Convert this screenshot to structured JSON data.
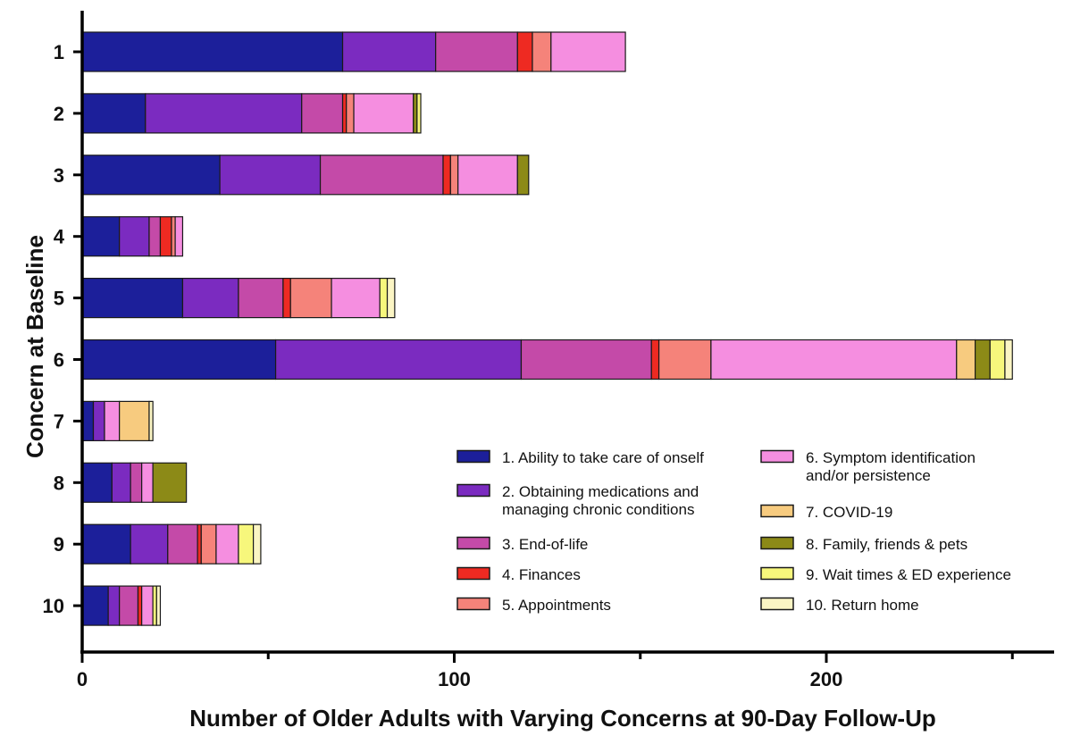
{
  "chart_data": {
    "type": "bar",
    "orientation": "horizontal",
    "stacked": true,
    "title": "",
    "xlabel": "Number of Older Adults with Varying Concerns at 90-Day Follow-Up",
    "ylabel": "Concern at Baseline",
    "xlim": [
      0,
      260
    ],
    "xticks": [
      0,
      100,
      200
    ],
    "categories": [
      "1",
      "2",
      "3",
      "4",
      "5",
      "6",
      "7",
      "8",
      "9",
      "10"
    ],
    "series": [
      {
        "name": "1. Ability to take care of onself",
        "color": "#1c1f9a",
        "values": [
          70,
          17,
          37,
          10,
          27,
          52,
          3,
          8,
          13,
          7
        ]
      },
      {
        "name": "2. Obtaining medications and managing chronic conditions",
        "color": "#7b2bc0",
        "values": [
          25,
          42,
          27,
          8,
          15,
          66,
          3,
          5,
          10,
          3
        ]
      },
      {
        "name": "3. End-of-life",
        "color": "#c44aa8",
        "values": [
          22,
          11,
          33,
          3,
          12,
          35,
          0,
          3,
          8,
          5
        ]
      },
      {
        "name": "4. Finances",
        "color": "#ee2a22",
        "values": [
          4,
          1,
          2,
          3,
          2,
          2,
          0,
          0,
          1,
          1
        ]
      },
      {
        "name": "5. Appointments",
        "color": "#f5837a",
        "values": [
          5,
          2,
          2,
          1,
          11,
          14,
          0,
          0,
          4,
          0
        ]
      },
      {
        "name": "6. Symptom identification and/or persistence",
        "color": "#f58ee0",
        "values": [
          20,
          16,
          16,
          2,
          13,
          66,
          4,
          3,
          6,
          3
        ]
      },
      {
        "name": "7. COVID-19",
        "color": "#f7cb7f",
        "values": [
          0,
          0,
          0,
          0,
          0,
          5,
          8,
          0,
          0,
          0
        ]
      },
      {
        "name": "8. Family, friends & pets",
        "color": "#8c8a17",
        "values": [
          0,
          1,
          3,
          0,
          0,
          4,
          0,
          9,
          0,
          0
        ]
      },
      {
        "name": "9. Wait times & ED experience",
        "color": "#f7f77c",
        "values": [
          0,
          1,
          0,
          0,
          2,
          4,
          0,
          0,
          4,
          1
        ]
      },
      {
        "name": "10. Return home",
        "color": "#fbf5c4",
        "values": [
          0,
          0,
          0,
          0,
          2,
          2,
          1,
          0,
          2,
          1
        ]
      }
    ],
    "legend": {
      "position": "bottom-right",
      "columns": 2,
      "items_display": [
        {
          "series": 0,
          "lines": [
            "1. Ability to take care of onself"
          ]
        },
        {
          "series": 1,
          "lines": [
            "2. Obtaining medications and",
            "managing chronic conditions"
          ]
        },
        {
          "series": 2,
          "lines": [
            "3. End-of-life"
          ]
        },
        {
          "series": 3,
          "lines": [
            "4. Finances"
          ]
        },
        {
          "series": 4,
          "lines": [
            "5. Appointments"
          ]
        },
        {
          "series": 5,
          "lines": [
            "6. Symptom identification",
            "and/or persistence"
          ]
        },
        {
          "series": 6,
          "lines": [
            "7. COVID-19"
          ]
        },
        {
          "series": 7,
          "lines": [
            "8. Family, friends & pets"
          ]
        },
        {
          "series": 8,
          "lines": [
            "9. Wait times & ED experience"
          ]
        },
        {
          "series": 9,
          "lines": [
            "10. Return home"
          ]
        }
      ]
    }
  }
}
